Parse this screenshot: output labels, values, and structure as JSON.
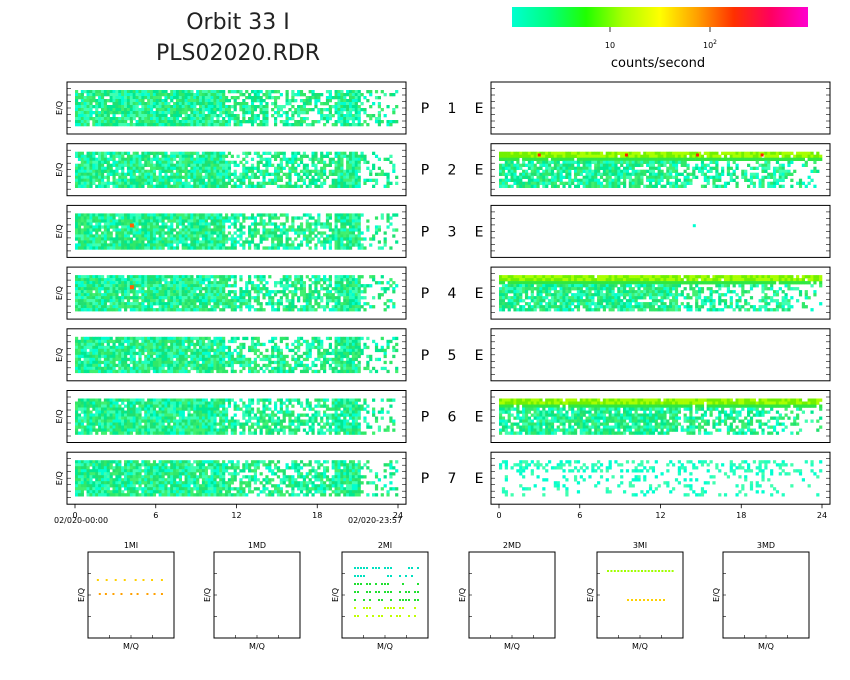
{
  "header": {
    "title_line1": "Orbit 33 I",
    "title_line2": "PLS02020.RDR"
  },
  "colorbar": {
    "colors": [
      "#00ffd0",
      "#00ff80",
      "#20ff00",
      "#aaff00",
      "#ffff00",
      "#ffa000",
      "#ff3000",
      "#ff0060",
      "#ff00d0"
    ],
    "tick_10": "10",
    "tick_100_base": "10",
    "tick_100_exp": "2",
    "label": "counts/second"
  },
  "chart_data": {
    "type": "heatmap",
    "left_column": "P",
    "right_column": "E",
    "rows": [
      {
        "num": "1",
        "left_level": "medium",
        "right_level": "empty"
      },
      {
        "num": "2",
        "left_level": "medium",
        "right_level": "high"
      },
      {
        "num": "3",
        "left_level": "medium",
        "right_level": "single-point"
      },
      {
        "num": "4",
        "left_level": "medium",
        "right_level": "high"
      },
      {
        "num": "5",
        "left_level": "medium",
        "right_level": "empty"
      },
      {
        "num": "6",
        "left_level": "medium",
        "right_level": "high"
      },
      {
        "num": "7",
        "left_level": "medium",
        "right_level": "sparse"
      }
    ],
    "ylabel": "E/Q",
    "xlim": [
      0,
      24
    ],
    "x_ticks": [
      "0",
      "6",
      "12",
      "18",
      "24"
    ],
    "start_time": "02/020-00:00",
    "end_time": "02/020-23:57",
    "mass_panels": [
      {
        "name": "1MI",
        "xlabel": "M/Q",
        "ylabel": "E/Q"
      },
      {
        "name": "1MD",
        "xlabel": "M/Q",
        "ylabel": "E/Q"
      },
      {
        "name": "2MI",
        "xlabel": "M/Q",
        "ylabel": "E/Q"
      },
      {
        "name": "2MD",
        "xlabel": "M/Q",
        "ylabel": "E/Q"
      },
      {
        "name": "3MI",
        "xlabel": "M/Q",
        "ylabel": "E/Q"
      },
      {
        "name": "3MD",
        "xlabel": "M/Q",
        "ylabel": "E/Q"
      }
    ]
  }
}
